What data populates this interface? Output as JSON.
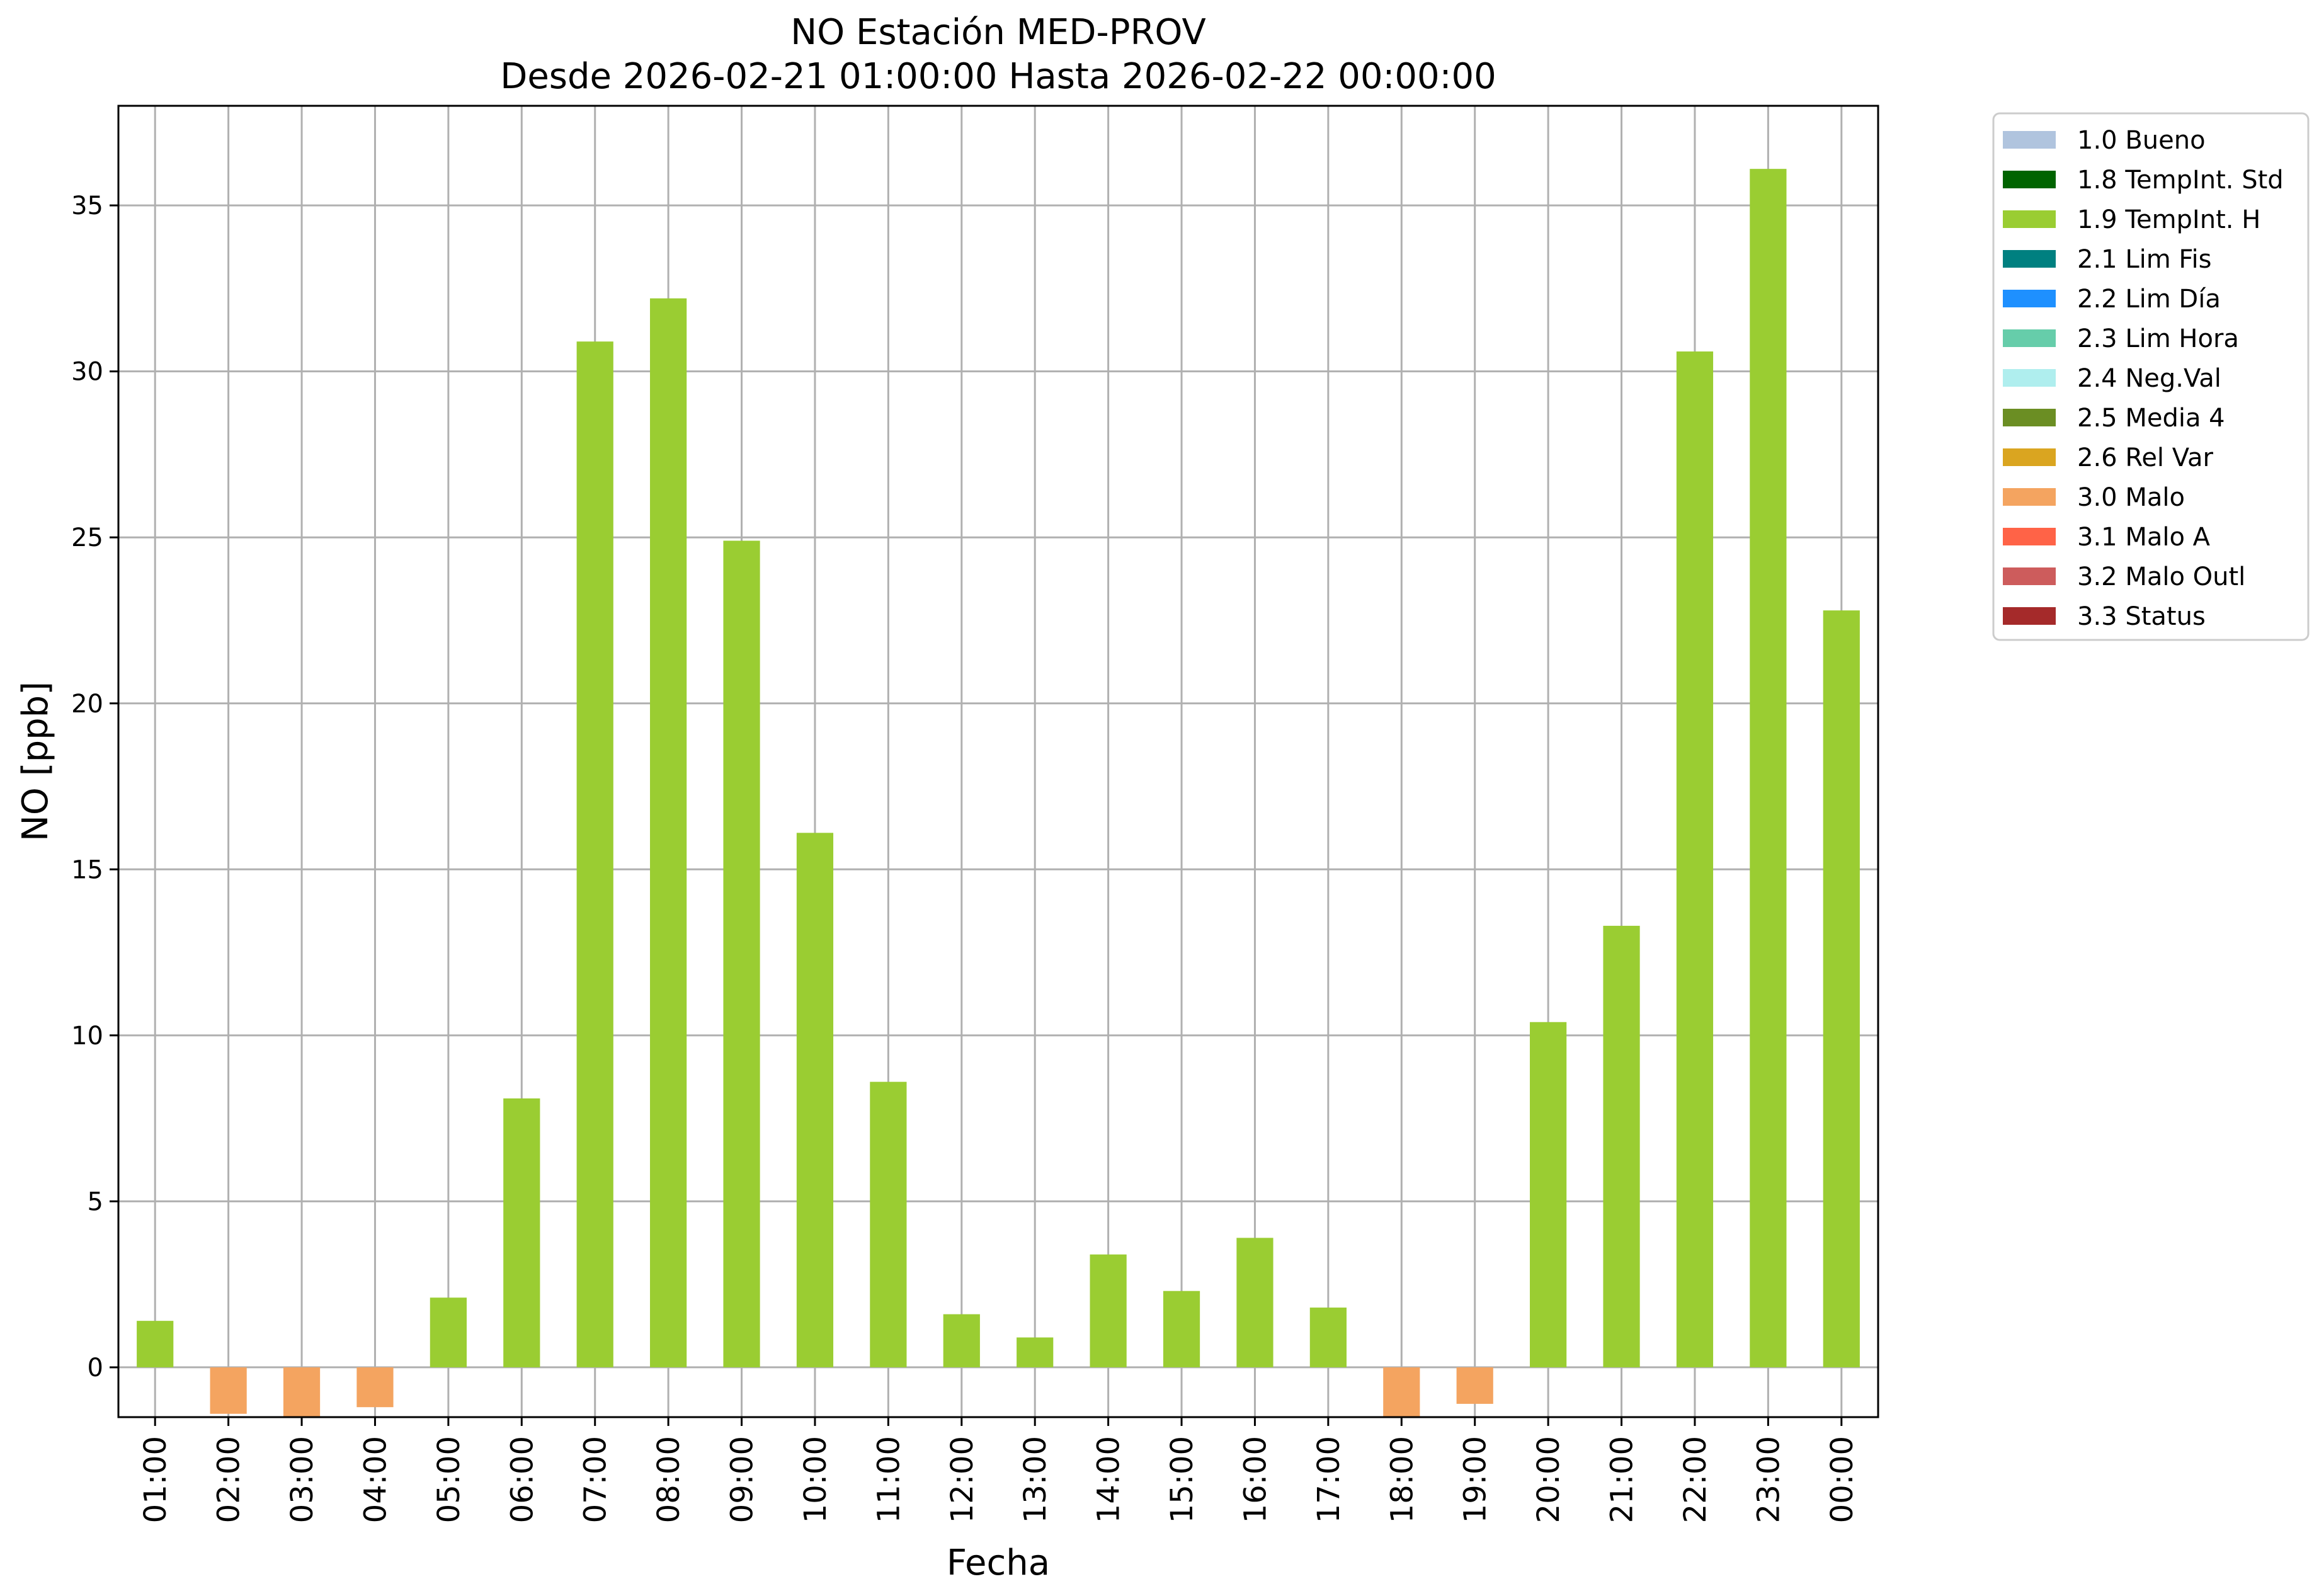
{
  "chart_data": {
    "type": "bar",
    "title": "NO Estación MED-PROV",
    "subtitle": "Desde 2026-02-21 01:00:00 Hasta 2026-02-22 00:00:00",
    "xlabel": "Fecha",
    "ylabel": "NO [ppb]",
    "ylim": [
      -1.5,
      38
    ],
    "yticks": [
      "0",
      "5",
      "10",
      "15",
      "20",
      "25",
      "30",
      "35"
    ],
    "grid": true,
    "legend_position": "outside-top-right",
    "categories": [
      "01:00",
      "02:00",
      "03:00",
      "04:00",
      "05:00",
      "06:00",
      "07:00",
      "08:00",
      "09:00",
      "10:00",
      "11:00",
      "12:00",
      "13:00",
      "14:00",
      "15:00",
      "16:00",
      "17:00",
      "18:00",
      "19:00",
      "20:00",
      "21:00",
      "22:00",
      "23:00",
      "00:00"
    ],
    "values": [
      1.4,
      -1.4,
      -1.5,
      -1.2,
      2.1,
      8.1,
      30.9,
      32.2,
      24.9,
      16.1,
      8.6,
      1.6,
      0.9,
      3.4,
      2.3,
      3.9,
      1.8,
      -1.5,
      -1.1,
      10.4,
      13.3,
      30.6,
      36.1,
      22.8
    ],
    "flags": [
      "1.9",
      "3.0",
      "3.0",
      "3.0",
      "1.9",
      "1.9",
      "1.9",
      "1.9",
      "1.9",
      "1.9",
      "1.9",
      "1.9",
      "1.9",
      "1.9",
      "1.9",
      "1.9",
      "1.9",
      "3.0",
      "3.0",
      "1.9",
      "1.9",
      "1.9",
      "1.9",
      "1.9"
    ],
    "legend": [
      {
        "code": "1.0",
        "label": "1.0 Bueno",
        "color": "#b0c4de"
      },
      {
        "code": "1.8",
        "label": "1.8 TempInt. Std",
        "color": "#006400"
      },
      {
        "code": "1.9",
        "label": "1.9 TempInt. H",
        "color": "#9acd32"
      },
      {
        "code": "2.1",
        "label": "2.1 Lim Fis",
        "color": "#008080"
      },
      {
        "code": "2.2",
        "label": "2.2 Lim Día",
        "color": "#1e90ff"
      },
      {
        "code": "2.3",
        "label": "2.3 Lim Hora",
        "color": "#66cdaa"
      },
      {
        "code": "2.4",
        "label": "2.4 Neg.Val",
        "color": "#afeeee"
      },
      {
        "code": "2.5",
        "label": "2.5 Media 4",
        "color": "#6b8e23"
      },
      {
        "code": "2.6",
        "label": "2.6 Rel Var",
        "color": "#daa520"
      },
      {
        "code": "3.0",
        "label": "3.0 Malo",
        "color": "#f4a460"
      },
      {
        "code": "3.1",
        "label": "3.1 Malo A",
        "color": "#ff6347"
      },
      {
        "code": "3.2",
        "label": "3.2 Malo Outl",
        "color": "#cd5c5c"
      },
      {
        "code": "3.3",
        "label": "3.3 Status",
        "color": "#a52a2a"
      }
    ]
  }
}
